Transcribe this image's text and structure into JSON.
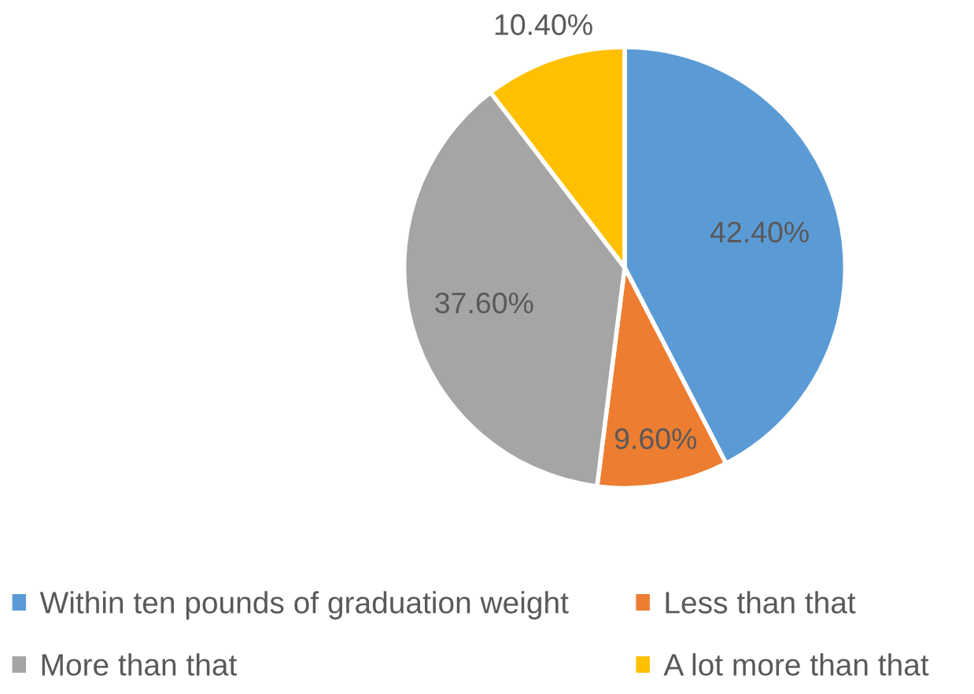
{
  "chart_data": {
    "type": "pie",
    "categories": [
      "Within ten pounds of graduation weight",
      "Less than that",
      "More than that",
      "A lot more than that"
    ],
    "values": [
      42.4,
      9.6,
      37.6,
      10.4
    ],
    "colors": [
      "#5b9bd5",
      "#ed7d31",
      "#a5a5a5",
      "#ffc000"
    ],
    "value_labels": [
      "42.40%",
      "9.60%",
      "37.60%",
      "10.40%"
    ],
    "legend": "bottom"
  }
}
